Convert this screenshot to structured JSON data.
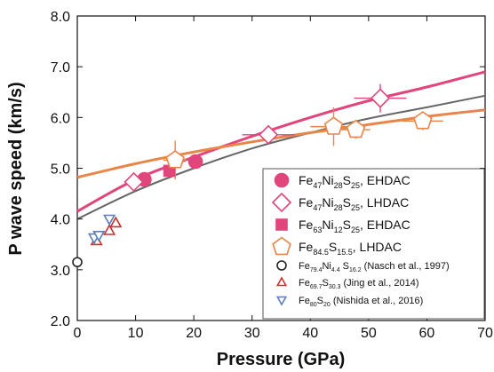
{
  "chart_data": {
    "type": "scatter",
    "xlabel": "Pressure (GPa)",
    "ylabel": "P wave speed (km/s)",
    "xlim": [
      0,
      70
    ],
    "ylim": [
      2.0,
      8.0
    ],
    "xticks": [
      0,
      10,
      20,
      30,
      40,
      50,
      60,
      70
    ],
    "yticks": [
      2.0,
      3.0,
      4.0,
      5.0,
      6.0,
      7.0,
      8.0
    ],
    "xtick_labels": [
      "0",
      "10",
      "20",
      "30",
      "40",
      "50",
      "60",
      "70"
    ],
    "ytick_labels": [
      "2.0",
      "3.0",
      "4.0",
      "5.0",
      "6.0",
      "7.0",
      "8.0"
    ],
    "grid": false,
    "legend_position": "bottom-right",
    "series": [
      {
        "name": "Fe47Ni28S25, EHDAC",
        "legend": [
          [
            "Fe",
            ""
          ],
          [
            "47",
            "sub"
          ],
          [
            "Ni",
            ""
          ],
          [
            "28",
            "sub"
          ],
          [
            "S",
            ""
          ],
          [
            "25",
            "sub"
          ],
          [
            ", EHDAC",
            ""
          ]
        ],
        "marker": "circle",
        "filled": true,
        "color": "#e0457b",
        "points": [
          {
            "x": 11.5,
            "y": 4.78
          },
          {
            "x": 20.3,
            "y": 5.13
          }
        ]
      },
      {
        "name": "Fe47Ni28S25, LHDAC",
        "legend": [
          [
            "Fe",
            ""
          ],
          [
            "47",
            "sub"
          ],
          [
            "Ni",
            ""
          ],
          [
            "28",
            "sub"
          ],
          [
            "S",
            ""
          ],
          [
            "25",
            "sub"
          ],
          [
            ", LHDAC",
            ""
          ]
        ],
        "marker": "diamond",
        "filled": false,
        "color": "#e0457b",
        "points": [
          {
            "x": 9.7,
            "y": 4.73,
            "xerr": 1.5,
            "yerr": 0.12
          },
          {
            "x": 32.8,
            "y": 5.66,
            "xerr": 4.5,
            "yerr": 0.12
          },
          {
            "x": 52.0,
            "y": 6.38,
            "xerr": 4.5,
            "yerr": 0.28
          }
        ]
      },
      {
        "name": "Fe63Ni12S25, EHDAC",
        "legend": [
          [
            "Fe",
            ""
          ],
          [
            "63",
            "sub"
          ],
          [
            "Ni",
            ""
          ],
          [
            "12",
            "sub"
          ],
          [
            "S",
            ""
          ],
          [
            "25",
            "sub"
          ],
          [
            ", EHDAC",
            ""
          ]
        ],
        "marker": "square",
        "filled": true,
        "color": "#e0457b",
        "points": [
          {
            "x": 15.8,
            "y": 4.95
          }
        ]
      },
      {
        "name": "Fe84.5S15.5, LHDAC",
        "legend": [
          [
            "Fe",
            ""
          ],
          [
            "84.5",
            "sub"
          ],
          [
            "S",
            ""
          ],
          [
            "15.5",
            "sub"
          ],
          [
            ", LHDAC",
            ""
          ]
        ],
        "marker": "pentagon",
        "filled": false,
        "color": "#e8864a",
        "points": [
          {
            "x": 16.8,
            "y": 5.16,
            "xerr": 2.0,
            "yerr": 0.38
          },
          {
            "x": 44.0,
            "y": 5.82,
            "xerr": 4.0,
            "yerr": 0.38
          },
          {
            "x": 47.8,
            "y": 5.76,
            "xerr": 2.5,
            "yerr": 0.18
          },
          {
            "x": 59.3,
            "y": 5.93,
            "xerr": 3.5,
            "yerr": 0.18
          }
        ]
      },
      {
        "name": "Fe79.4Ni4.4S16.2 (Nasch et al., 1997)",
        "legend": [
          [
            "Fe",
            ""
          ],
          [
            "79.4",
            "sub"
          ],
          [
            "Ni",
            ""
          ],
          [
            "4.4",
            "sub"
          ],
          [
            " S",
            ""
          ],
          [
            "16.2",
            "sub"
          ],
          [
            " (Nasch et al., 1997)",
            ""
          ]
        ],
        "marker": "circle",
        "filled": false,
        "color": "#222222",
        "points": [
          {
            "x": 0.0,
            "y": 3.15
          }
        ]
      },
      {
        "name": "Fe69.7S30.3 (Jing et al., 2014)",
        "legend": [
          [
            "Fe",
            ""
          ],
          [
            "69.7",
            "sub"
          ],
          [
            "S",
            ""
          ],
          [
            "30.3",
            "sub"
          ],
          [
            " (Jing et al., 2014)",
            ""
          ]
        ],
        "marker": "triangle-up",
        "filled": false,
        "color": "#c8322f",
        "points": [
          {
            "x": 3.3,
            "y": 3.57
          },
          {
            "x": 5.5,
            "y": 3.77
          },
          {
            "x": 6.6,
            "y": 3.92
          }
        ]
      },
      {
        "name": "Fe80S20 (Nishida et al., 2016)",
        "legend": [
          [
            "Fe",
            ""
          ],
          [
            "80",
            "sub"
          ],
          [
            "S",
            ""
          ],
          [
            "20",
            "sub"
          ],
          [
            " (Nishida et al., 2016)",
            ""
          ]
        ],
        "marker": "triangle-down",
        "filled": false,
        "color": "#5b7fb8",
        "points": [
          {
            "x": 2.9,
            "y": 3.63
          },
          {
            "x": 3.7,
            "y": 3.68
          },
          {
            "x": 5.5,
            "y": 4.0
          }
        ]
      }
    ],
    "fit_lines": [
      {
        "color": "#e0457b",
        "width": 3,
        "points": [
          [
            0,
            4.15
          ],
          [
            10,
            4.78
          ],
          [
            20,
            5.22
          ],
          [
            30,
            5.63
          ],
          [
            40,
            6.0
          ],
          [
            50,
            6.33
          ],
          [
            60,
            6.6
          ],
          [
            70,
            6.9
          ]
        ]
      },
      {
        "color": "#666666",
        "width": 2,
        "points": [
          [
            0,
            4.0
          ],
          [
            10,
            4.55
          ],
          [
            20,
            5.0
          ],
          [
            30,
            5.39
          ],
          [
            40,
            5.7
          ],
          [
            50,
            5.98
          ],
          [
            60,
            6.2
          ],
          [
            70,
            6.43
          ]
        ]
      },
      {
        "color": "#e8864a",
        "width": 3,
        "points": [
          [
            0,
            4.82
          ],
          [
            10,
            5.09
          ],
          [
            20,
            5.32
          ],
          [
            30,
            5.52
          ],
          [
            40,
            5.7
          ],
          [
            50,
            5.86
          ],
          [
            60,
            6.02
          ],
          [
            70,
            6.15
          ]
        ]
      }
    ]
  }
}
